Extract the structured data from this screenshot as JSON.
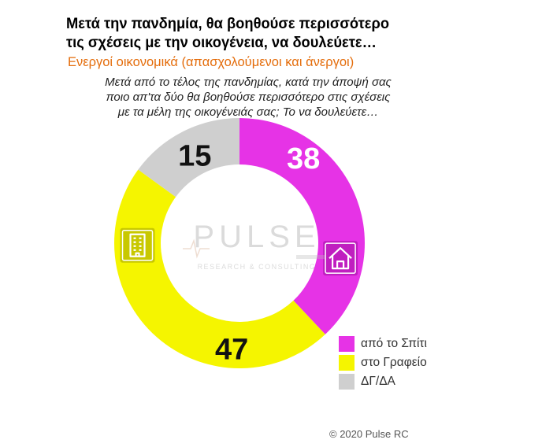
{
  "title_lines": [
    "Μετά την πανδημία, θα βοηθούσε περισσότερο",
    "τις σχέσεις με την οικογένεια, να δουλεύετε…"
  ],
  "subtitle": "Ενεργοί οικονομικά  (απασχολούμενοι και άνεργοι)",
  "question_lines": [
    "Μετά από το τέλος της πανδημίας, κατά την άποψή σας",
    "ποιο απ'τα δύο θα βοηθούσε περισσότερο στις σχέσεις",
    "με τα μέλη της οικογένειάς σας; Το να δουλεύετε…"
  ],
  "watermark": {
    "brand": "PULSE",
    "tagline": "RESEARCH & CONSULTING"
  },
  "copyright": "© 2020 Pulse RC",
  "chart_data": {
    "type": "pie",
    "donut": true,
    "categories": [
      "από το Σπίτι",
      "στο Γραφείο",
      "ΔΓ/ΔΑ"
    ],
    "values": [
      38,
      47,
      15
    ],
    "colors": [
      "#e633e6",
      "#f5f500",
      "#cfcfcf"
    ],
    "icons": [
      "house-icon",
      "office-building-icon",
      ""
    ],
    "legend_position": "bottom-right"
  }
}
